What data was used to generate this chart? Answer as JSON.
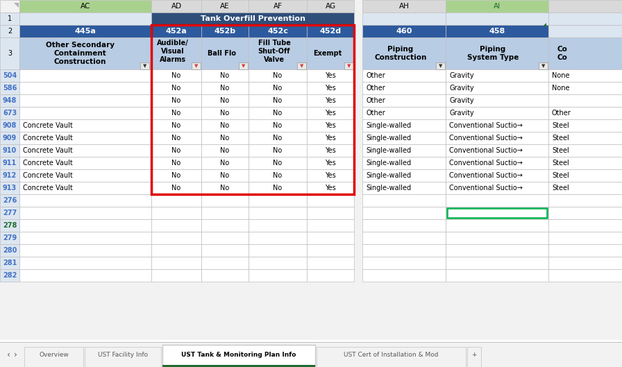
{
  "title_row": "Tank Overfill Prevention",
  "header_bg": "#2f4e7a",
  "header_bg_light": "#3d6599",
  "subheader_bg": "#8eaadb",
  "subheader_bg_light": "#b8cce4",
  "col_letter_bg_ac": "#a9d18e",
  "col_letter_bg_ai": "#a9d18e",
  "col_letter_bg_ah": "#d9d9d9",
  "col_letter_bg_others": "#d9d9d9",
  "col_letter_text": "#000000",
  "row_num_color": "#4472c4",
  "row_num_277_color": "#1f6b2e",
  "grid_color": "#bfbfbf",
  "cell_bg": "#ffffff",
  "light_blue_bg": "#dce6f1",
  "red_box_color": "#ff0000",
  "green_box_color": "#00b050",
  "tab_active_color": "#1f6b2e",
  "tab_labels": [
    "Overview",
    "UST Facility Info",
    "UST Tank & Monitoring Plan Info",
    "UST Cert of Installation & Mod",
    "+"
  ],
  "active_tab": "UST Tank & Monitoring Plan Info",
  "row_numbers_data": [
    "504",
    "586",
    "948",
    "673",
    "908",
    "909",
    "910",
    "911",
    "912",
    "913"
  ],
  "ac_data": [
    "",
    "",
    "",
    "",
    "Concrete Vault",
    "Concrete Vault",
    "Concrete Vault",
    "Concrete Vault",
    "Concrete Vault",
    "Concrete Vault"
  ],
  "ah_data": [
    "Other",
    "Other",
    "Other",
    "Other",
    "Single-walled",
    "Single-walled",
    "Single-walled",
    "Single-walled",
    "Single-walled",
    "Single-walled"
  ],
  "ai_data": [
    "Gravity",
    "Gravity",
    "Gravity",
    "Gravity",
    "Conventional Suctio→",
    "Conventional Suctio→",
    "Conventional Suctio→",
    "Conventional Suctio→",
    "Conventional Suctio→",
    "Conventional Suctio→"
  ],
  "last_data": [
    "None",
    "None",
    "",
    "Other",
    "Steel",
    "Steel",
    "Steel",
    "Steel",
    "Steel",
    "Steel"
  ],
  "empty_rows": [
    "276",
    "277",
    "278",
    "279",
    "280",
    "281",
    "282"
  ]
}
